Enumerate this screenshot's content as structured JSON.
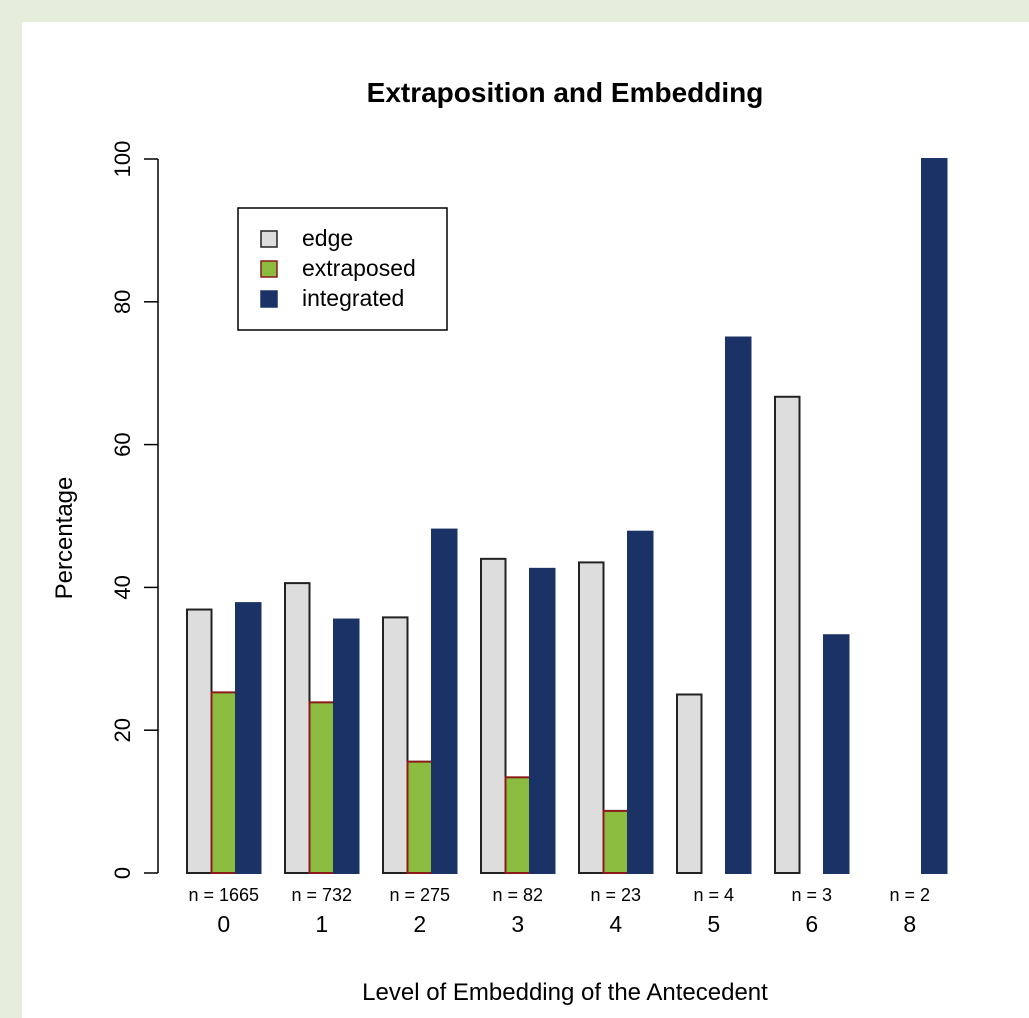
{
  "chart_data": {
    "type": "bar",
    "title": "Extraposition and Embedding",
    "xlabel": "Level of Embedding of the Antecedent",
    "ylabel": "Percentage",
    "ylim": [
      0,
      100
    ],
    "yticks": [
      "0",
      "20",
      "40",
      "60",
      "80",
      "100"
    ],
    "categories": [
      "0",
      "1",
      "2",
      "3",
      "4",
      "5",
      "6",
      "8"
    ],
    "counts": [
      "n = 1665",
      "n = 732",
      "n = 275",
      "n = 82",
      "n = 23",
      "n = 4",
      "n = 3",
      "n = 2"
    ],
    "series": [
      {
        "name": "edge",
        "color": "#dddddd",
        "stroke": "#222222",
        "values": [
          36.9,
          40.6,
          35.8,
          44.0,
          43.5,
          25.0,
          66.7,
          0
        ]
      },
      {
        "name": "extraposed",
        "color": "#8cbc3f",
        "stroke": "#8b1a1a",
        "values": [
          25.3,
          23.9,
          15.6,
          13.4,
          8.7,
          0,
          0,
          0
        ]
      },
      {
        "name": "integrated",
        "color": "#1b3266",
        "stroke": "#1b3266",
        "values": [
          37.8,
          35.5,
          48.1,
          42.6,
          47.8,
          75.0,
          33.3,
          100.0
        ]
      }
    ],
    "grid": false,
    "legend_position": "top-left"
  }
}
